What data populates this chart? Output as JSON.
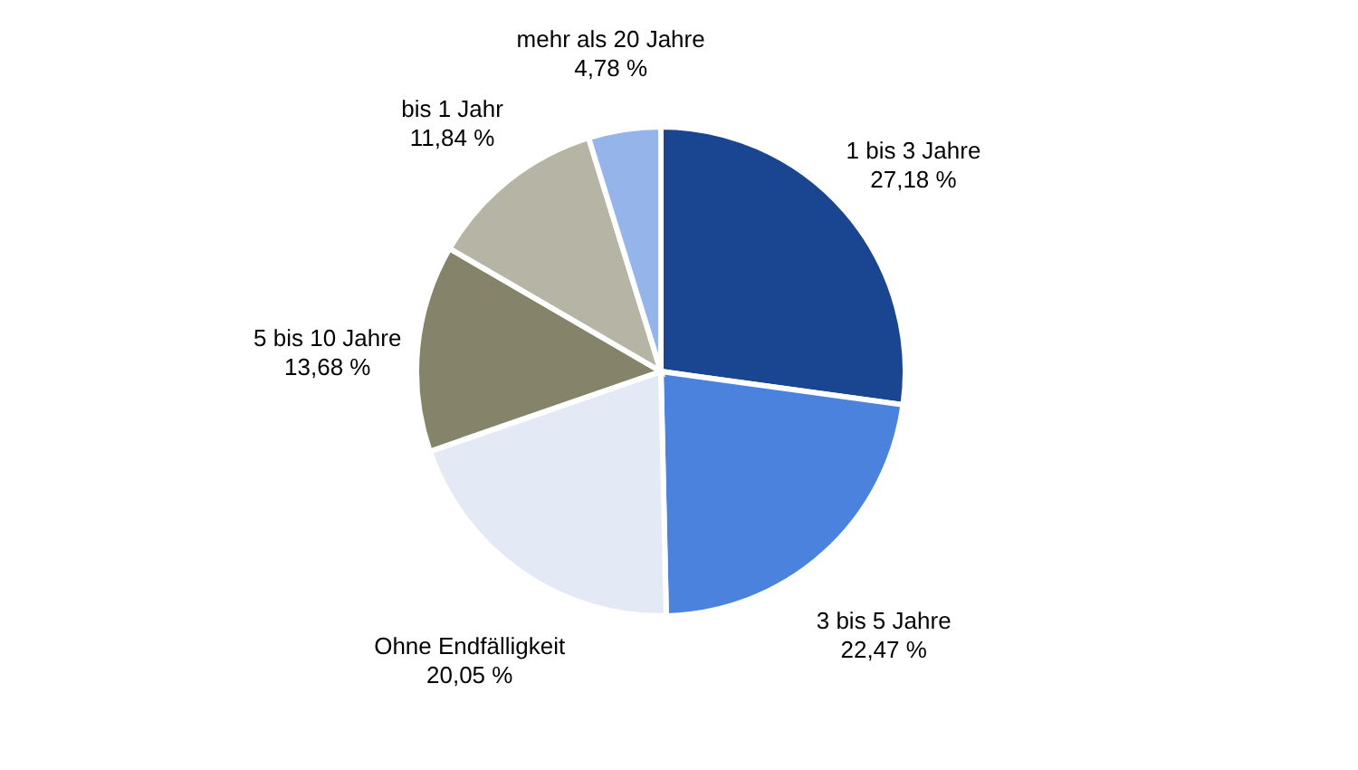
{
  "chart_data": {
    "type": "pie",
    "categories": [
      "1 bis 3 Jahre",
      "3 bis 5 Jahre",
      "Ohne Endfälligkeit",
      "5 bis 10 Jahre",
      "bis 1 Jahr",
      "mehr als 20 Jahre"
    ],
    "values": [
      27.18,
      22.47,
      20.05,
      13.68,
      11.84,
      4.78
    ],
    "value_labels": [
      "27,18 %",
      "22,47 %",
      "20,05 %",
      "13,68 %",
      "11,84 %",
      "4,78 %"
    ],
    "colors": [
      "#1a4590",
      "#4a82de",
      "#e4eaf5",
      "#85846a",
      "#b5b4a5",
      "#94b4ea"
    ],
    "legend": false
  }
}
